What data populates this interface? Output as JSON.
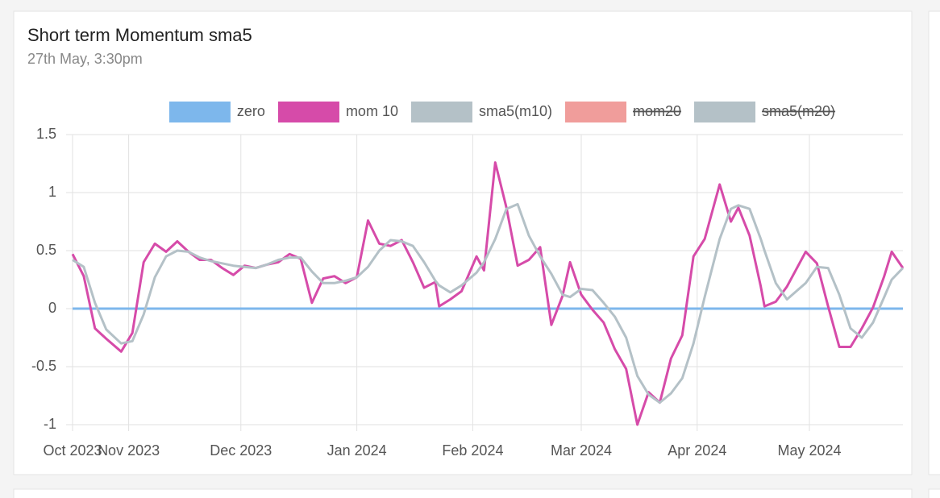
{
  "chart_data": {
    "type": "line",
    "title": "Short term Momentum sma5",
    "subtitle": "27th May, 3:30pm",
    "x": [
      16,
      19,
      22,
      25,
      29,
      32,
      35,
      38,
      41,
      44,
      47,
      50,
      53,
      56,
      59,
      62,
      65,
      68,
      71,
      74,
      77,
      80,
      83,
      86,
      89,
      92,
      95,
      98,
      101,
      104,
      107,
      110,
      113,
      114,
      117,
      120,
      124,
      126,
      129,
      132,
      135,
      138,
      141,
      144,
      147,
      149,
      152,
      155,
      158,
      161,
      164,
      167,
      170,
      173,
      176,
      179,
      182,
      185,
      189,
      192,
      194,
      197,
      200,
      201,
      204,
      207,
      212,
      215,
      218,
      221,
      224,
      227,
      230,
      233,
      235,
      238
    ],
    "xlim": [
      16,
      238
    ],
    "xticks": [
      {
        "value": 16,
        "label": "Oct 2023"
      },
      {
        "value": 31,
        "label": "Nov 2023"
      },
      {
        "value": 61,
        "label": "Dec 2023"
      },
      {
        "value": 92,
        "label": "Jan 2024"
      },
      {
        "value": 123,
        "label": "Feb 2024"
      },
      {
        "value": 152,
        "label": "Mar 2024"
      },
      {
        "value": 183,
        "label": "Apr 2024"
      },
      {
        "value": 213,
        "label": "May 2024"
      }
    ],
    "ylim": [
      -1,
      1.5
    ],
    "yticks": [
      1.5,
      1,
      0.5,
      0,
      -0.5,
      -1
    ],
    "grid": true,
    "legend": "top",
    "series": [
      {
        "name": "zero",
        "color": "#7db7ec",
        "x": [
          16,
          238
        ],
        "values": [
          0,
          0
        ]
      },
      {
        "name": "mom 10",
        "color": "#d64ba9",
        "values": [
          0.47,
          0.28,
          -0.17,
          -0.26,
          -0.37,
          -0.21,
          0.4,
          0.56,
          0.49,
          0.58,
          0.49,
          0.42,
          0.42,
          0.35,
          0.29,
          0.37,
          0.35,
          0.38,
          0.4,
          0.47,
          0.43,
          0.05,
          0.26,
          0.28,
          0.22,
          0.27,
          0.76,
          0.56,
          0.54,
          0.59,
          0.4,
          0.18,
          0.23,
          0.02,
          0.08,
          0.15,
          0.45,
          0.33,
          1.26,
          0.87,
          0.37,
          0.42,
          0.53,
          -0.14,
          0.11,
          0.4,
          0.12,
          -0.01,
          -0.12,
          -0.35,
          -0.52,
          -1.0,
          -0.72,
          -0.81,
          -0.43,
          -0.23,
          0.45,
          0.6,
          1.07,
          0.75,
          0.87,
          0.63,
          0.19,
          0.02,
          0.06,
          0.19,
          0.49,
          0.39,
          0.02,
          -0.33,
          -0.33,
          -0.17,
          0.01,
          0.28,
          0.49,
          0.35
        ]
      },
      {
        "name": "sma5(m10)",
        "color": "#b4c1c7",
        "values": [
          0.42,
          0.36,
          0.05,
          -0.18,
          -0.3,
          -0.28,
          -0.05,
          0.27,
          0.45,
          0.5,
          0.49,
          0.44,
          0.41,
          0.39,
          0.37,
          0.36,
          0.35,
          0.38,
          0.42,
          0.44,
          0.44,
          0.32,
          0.22,
          0.22,
          0.24,
          0.27,
          0.36,
          0.5,
          0.59,
          0.58,
          0.54,
          0.4,
          0.24,
          0.2,
          0.14,
          0.2,
          0.31,
          0.4,
          0.6,
          0.86,
          0.9,
          0.63,
          0.45,
          0.3,
          0.12,
          0.1,
          0.17,
          0.16,
          0.05,
          -0.07,
          -0.25,
          -0.58,
          -0.74,
          -0.81,
          -0.73,
          -0.6,
          -0.3,
          0.1,
          0.6,
          0.86,
          0.89,
          0.86,
          0.6,
          0.5,
          0.22,
          0.08,
          0.22,
          0.36,
          0.35,
          0.12,
          -0.17,
          -0.25,
          -0.12,
          0.1,
          0.25,
          0.35
        ]
      },
      {
        "name": "mom20",
        "color": "#f09d9b",
        "hidden": true
      },
      {
        "name": "sma5(m20)",
        "color": "#b4c1c7",
        "hidden": true
      }
    ]
  }
}
